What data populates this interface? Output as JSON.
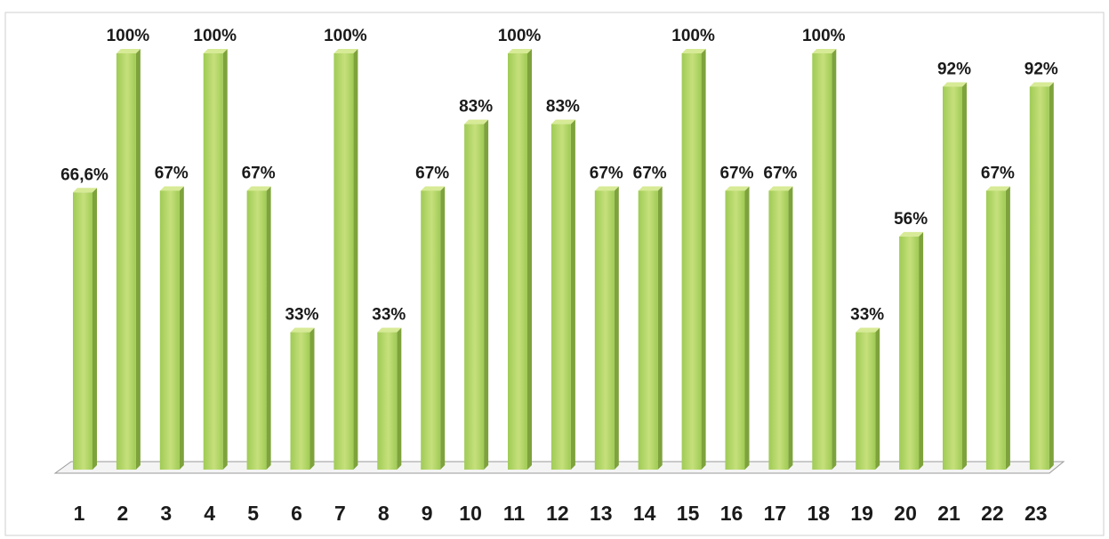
{
  "chart_data": {
    "type": "bar",
    "categories": [
      "1",
      "2",
      "3",
      "4",
      "5",
      "6",
      "7",
      "8",
      "9",
      "10",
      "11",
      "12",
      "13",
      "14",
      "15",
      "16",
      "17",
      "18",
      "19",
      "20",
      "21",
      "22",
      "23"
    ],
    "values": [
      66.6,
      100,
      67,
      100,
      67,
      33,
      100,
      33,
      67,
      83,
      100,
      83,
      67,
      67,
      100,
      67,
      67,
      100,
      33,
      56,
      92,
      67,
      92
    ],
    "data_labels": [
      "66,6%",
      "100%",
      "67%",
      "100%",
      "67%",
      "33%",
      "100%",
      "33%",
      "67%",
      "83%",
      "100%",
      "83%",
      "67%",
      "67%",
      "100%",
      "67%",
      "67%",
      "100%",
      "33%",
      "56%",
      "92%",
      "67%",
      "92%"
    ],
    "title": "",
    "xlabel": "",
    "ylabel": "",
    "ylim": [
      0,
      100
    ],
    "grid": false,
    "legend": "none",
    "colors": {
      "bar_front": "#9fcb55",
      "bar_front_light": "#c6e07c",
      "bar_side": "#7ea23c",
      "bar_top": "#d7ea96",
      "floor": "#f4f4f4",
      "floor_stroke": "#9a9a9a",
      "frame": "#b8b8b8"
    }
  }
}
